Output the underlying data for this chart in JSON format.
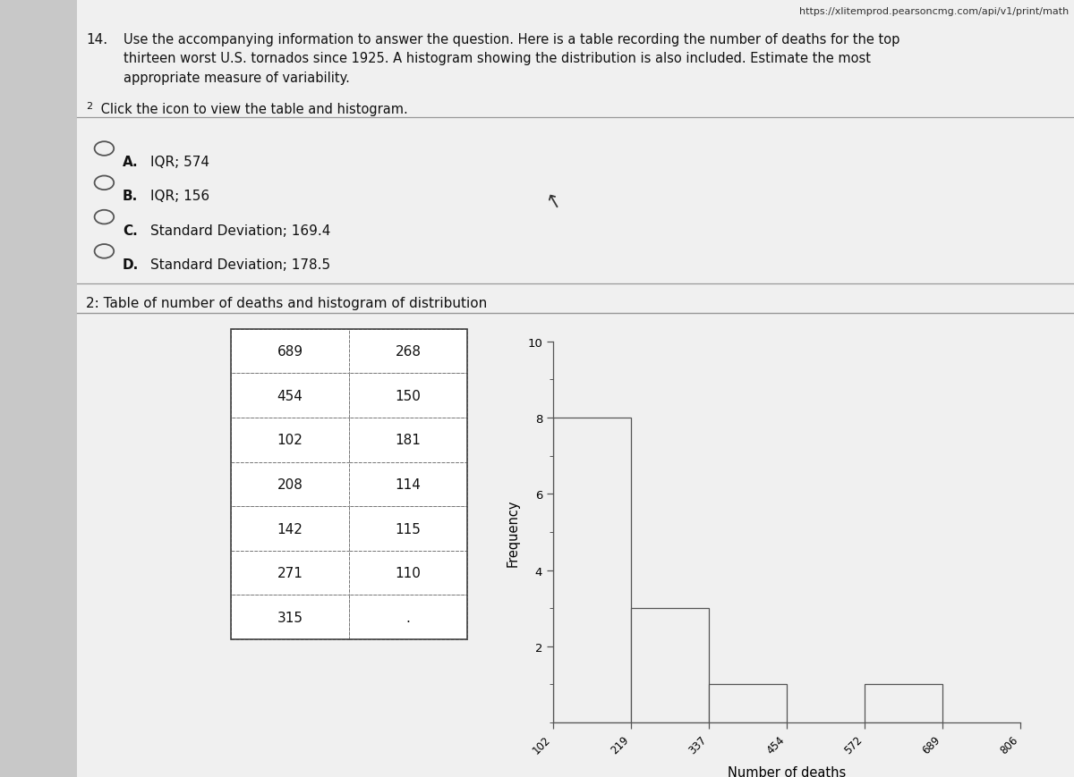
{
  "url_text": "https://xlitemprod.pearsoncmg.com/api/v1/print/math",
  "question_number": "14.",
  "question_text_line1": "Use the accompanying information to answer the question. Here is a table recording the number of deaths for the top",
  "question_text_line2": "thirteen worst U.S. tornados since 1925. A histogram showing the distribution is also included. Estimate the most",
  "question_text_line3": "appropriate measure of variability.",
  "footnote_superscript": "2",
  "footnote_text": " Click the icon to view the table and histogram.",
  "choices": [
    {
      "label": "A.",
      "text": "IQR; 574"
    },
    {
      "label": "B.",
      "text": "IQR; 156"
    },
    {
      "label": "C.",
      "text": "Standard Deviation; 169.4"
    },
    {
      "label": "D.",
      "text": "Standard Deviation; 178.5"
    }
  ],
  "section_title": "2: Table of number of deaths and histogram of distribution",
  "table_col1": [
    689,
    454,
    102,
    208,
    142,
    271,
    315
  ],
  "table_col2": [
    268,
    150,
    181,
    114,
    115,
    110,
    "."
  ],
  "hist_bin_edges": [
    102,
    219,
    337,
    454,
    572,
    689,
    806
  ],
  "hist_frequencies": [
    8,
    3,
    1,
    0,
    1,
    0
  ],
  "hist_xlabel": "Number of deaths",
  "hist_ylabel": "Frequency",
  "hist_ylim": [
    0,
    10
  ],
  "sidebar_color": "#c8c8c8",
  "content_bg": "#f0f0f0",
  "table_border_color": "#777777",
  "hist_bar_color": "#f0f0f0",
  "hist_bar_edge": "#555555",
  "text_color": "#111111",
  "line_color": "#999999"
}
